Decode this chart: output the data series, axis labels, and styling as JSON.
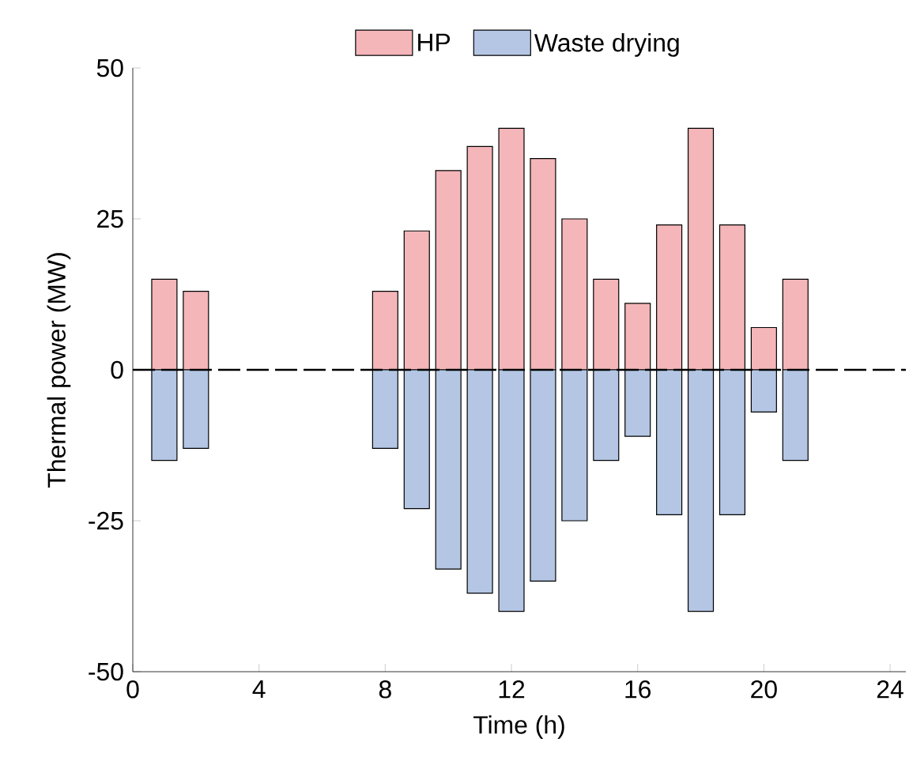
{
  "chart_data": {
    "type": "bar",
    "xlabel": "Time (h)",
    "ylabel": "Thermal power (MW)",
    "x": [
      1,
      2,
      8,
      9,
      10,
      11,
      12,
      13,
      14,
      15,
      16,
      17,
      18,
      19,
      20,
      21
    ],
    "series": [
      {
        "name": "HP",
        "color": "#f4b6b9",
        "values": [
          15,
          13,
          13,
          23,
          33,
          37,
          40,
          35,
          25,
          15,
          11,
          24,
          40,
          24,
          7,
          15
        ]
      },
      {
        "name": "Waste drying",
        "color": "#b4c6e4",
        "values": [
          -15,
          -13,
          -13,
          -23,
          -33,
          -37,
          -40,
          -35,
          -25,
          -15,
          -11,
          -24,
          -40,
          -24,
          -7,
          -15
        ]
      }
    ],
    "stacked": true,
    "xlim": [
      0,
      24.5
    ],
    "xticks": [
      0,
      4,
      8,
      12,
      16,
      20,
      24
    ],
    "ylim": [
      -50,
      50
    ],
    "yticks": [
      -50,
      -25,
      0,
      25,
      50
    ],
    "ref_lines": [
      {
        "axis": "y",
        "value": 0,
        "line_style": "dashed",
        "color": "#000000"
      }
    ],
    "legend": "top",
    "grid": false
  }
}
